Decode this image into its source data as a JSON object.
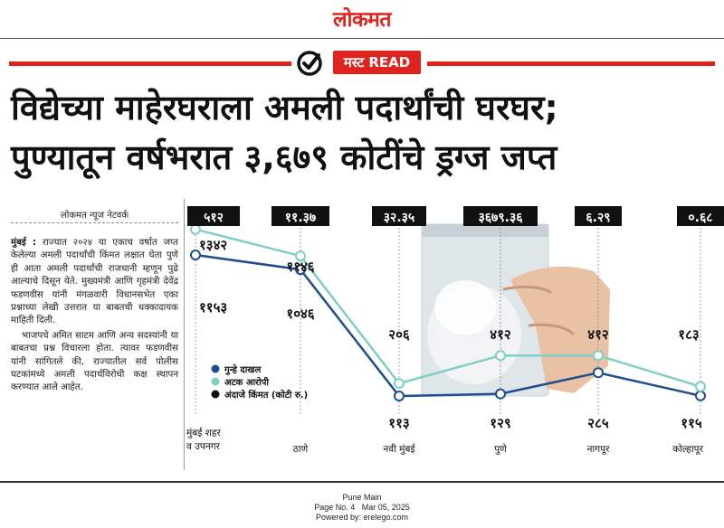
{
  "masthead": {
    "logo": "लोकमत"
  },
  "tag": {
    "label": "मस्ट READ"
  },
  "headline": {
    "line1": "विद्येच्या माहेरघराला अमली पदार्थांची घरघर;",
    "line2": "पुण्यातून वर्षभरात ३,६७९ कोटींचे ड्रग्ज जप्त"
  },
  "byline": "लोकमत न्यूज नेटवर्क",
  "article": {
    "dateline": "मुंबई :",
    "p1": "राज्यात २०२४ या एकाच वर्षात जप्त केलेल्या अमली पदार्थांची किंमत लक्षात घेता पुणे ही आता अमली पदार्थांची राजधानी म्हणून पुढे आल्याचे दिसून येते. मुख्यमंत्री आणि गृहमंत्री देवेंद्र फडणवीस यांनी मंगळवारी विधानसभेत एका प्रश्नाच्या लेखी उत्तरात या बाबतची धक्कादायक माहिती दिली.",
    "p2": "भाजपचे अमित साटम आणि अन्य सदस्यांनी या बाबतचा प्रश्न विचारला होता. त्यावर फडणवीस यांनी सांगितले की, राज्यातील सर्व पोलीस घटकांमध्ये अमली पदार्थविरोधी कक्ष स्थापन करण्यात आले आहेत."
  },
  "colors": {
    "accent": "#e0231f",
    "cases": "#1f4e8c",
    "arrests": "#7fcfc6",
    "value_label_bg": "#111111"
  },
  "chart_data": {
    "type": "line",
    "categories": [
      "मुंबई शहर व उपनगर",
      "ठाणे",
      "नवी मुंबई",
      "पुणे",
      "नागपूर",
      "कोल्हापूर"
    ],
    "series": [
      {
        "name": "गुन्हे दाखल",
        "values": [
          1153,
          1046,
          113,
          129,
          285,
          115
        ],
        "labels": [
          "११५३",
          "१०४६",
          "११३",
          "१२९",
          "२८५",
          "११५"
        ]
      },
      {
        "name": "अटक आरोपी",
        "values": [
          1342,
          1146,
          206,
          412,
          412,
          183
        ],
        "labels": [
          "१३४२",
          "११४६",
          "२०६",
          "४१२",
          "४१२",
          "१८३"
        ]
      },
      {
        "name": "अंदाजे किंमत (कोटी रु.)",
        "values": [
          512,
          11.37,
          32.35,
          3679.36,
          6.29,
          0.68
        ],
        "labels": [
          "५१२",
          "११.३७",
          "३२.३५",
          "३६७९.३६",
          "६.२९",
          "०.६८"
        ]
      }
    ]
  },
  "footer": {
    "edition": "Pune Main",
    "page": "Page No. 4",
    "date": "Mar 05, 2025",
    "powered": "Powered by: erelego.com"
  }
}
